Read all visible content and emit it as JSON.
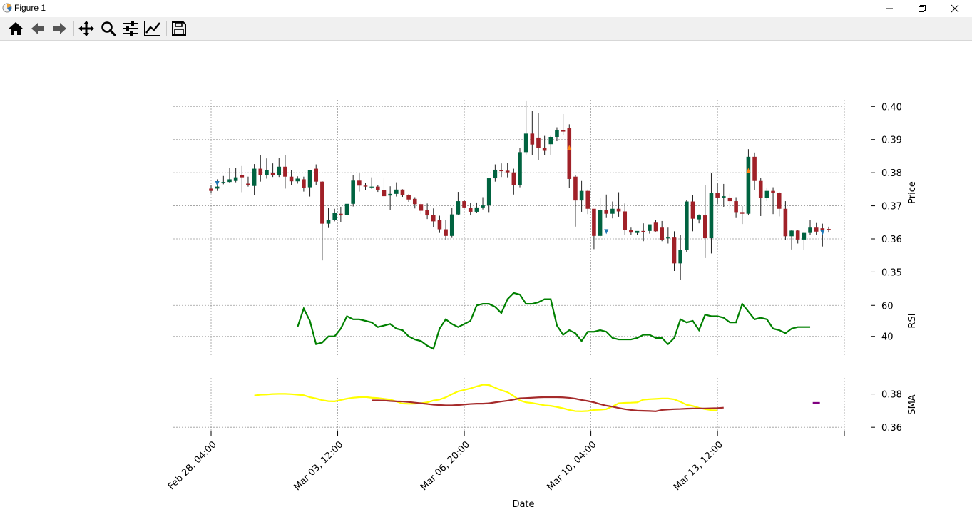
{
  "window": {
    "title": "Figure 1",
    "app_icon": "matplotlib-icon",
    "controls": [
      "minimize-icon",
      "restore-icon",
      "close-icon"
    ]
  },
  "toolbar": {
    "buttons": [
      {
        "name": "home-button",
        "icon": "home-icon"
      },
      {
        "name": "back-button",
        "icon": "arrow-left-icon"
      },
      {
        "name": "forward-button",
        "icon": "arrow-right-icon"
      },
      {
        "name": "pan-button",
        "icon": "move-icon"
      },
      {
        "name": "zoom-button",
        "icon": "magnifier-icon"
      },
      {
        "name": "subplots-button",
        "icon": "sliders-icon"
      },
      {
        "name": "edit-axes-button",
        "icon": "line-chart-icon"
      },
      {
        "name": "save-button",
        "icon": "floppy-disk-icon"
      }
    ]
  },
  "chart_data": {
    "type": "candlestick",
    "xlabel": "Date",
    "x_tick_labels": [
      "Feb 28, 04:00",
      "Mar 03, 12:00",
      "Mar 06, 20:00",
      "Mar 10, 04:00",
      "Mar 13, 12:00"
    ],
    "grid": true,
    "colors": {
      "up": "#006340",
      "down": "#a02128",
      "wick": "#222222",
      "rsi": "#008000",
      "sma_fast": "#ffff00",
      "sma_slow": "#a52a2a",
      "sma_marker": "#800080",
      "buy_marker": "#1f77b4",
      "sell_marker": "#ff7f0e"
    },
    "price_panel": {
      "ylabel": "Price",
      "yticks": [
        0.35,
        0.36,
        0.37,
        0.38,
        0.39,
        0.4
      ],
      "ytick_labels": [
        "0.35",
        "0.36",
        "0.37",
        "0.38",
        "0.39",
        "0.40"
      ],
      "ylim": [
        0.346,
        0.402
      ],
      "candles": [
        [
          0.3752,
          0.3762,
          0.3745,
          0.3737
        ],
        [
          0.3752,
          0.378,
          0.3758,
          0.3745
        ],
        [
          0.3768,
          0.379,
          0.3772,
          0.3765
        ],
        [
          0.3772,
          0.3815,
          0.378,
          0.377
        ],
        [
          0.3775,
          0.3815,
          0.3786,
          0.3771
        ],
        [
          0.3792,
          0.382,
          0.3786,
          0.3741
        ],
        [
          0.3767,
          0.3788,
          0.3762,
          0.3758
        ],
        [
          0.376,
          0.3826,
          0.3812,
          0.3732
        ],
        [
          0.3812,
          0.3852,
          0.3792,
          0.3773
        ],
        [
          0.3792,
          0.3843,
          0.3808,
          0.3782
        ],
        [
          0.38,
          0.3828,
          0.3792,
          0.3787
        ],
        [
          0.3792,
          0.3845,
          0.3818,
          0.3787
        ],
        [
          0.3818,
          0.3853,
          0.3788,
          0.3752
        ],
        [
          0.3788,
          0.3807,
          0.3774,
          0.3762
        ],
        [
          0.3774,
          0.3789,
          0.3782,
          0.3767
        ],
        [
          0.378,
          0.3788,
          0.3753,
          0.3743
        ],
        [
          0.3756,
          0.3803,
          0.3808,
          0.3728
        ],
        [
          0.3812,
          0.3825,
          0.3773,
          0.3762
        ],
        [
          0.3773,
          0.3774,
          0.3646,
          0.3535
        ],
        [
          0.3646,
          0.3693,
          0.3656,
          0.3633
        ],
        [
          0.3656,
          0.3691,
          0.3678,
          0.3653
        ],
        [
          0.3676,
          0.3697,
          0.3671,
          0.3651
        ],
        [
          0.3672,
          0.3706,
          0.3706,
          0.3663
        ],
        [
          0.3706,
          0.3792,
          0.3776,
          0.3698
        ],
        [
          0.3776,
          0.3798,
          0.3761,
          0.3743
        ],
        [
          0.3761,
          0.3768,
          0.3758,
          0.3747
        ],
        [
          0.3757,
          0.3786,
          0.3758,
          0.3751
        ],
        [
          0.3758,
          0.3762,
          0.3748,
          0.3742
        ],
        [
          0.3748,
          0.3785,
          0.3729,
          0.3723
        ],
        [
          0.3731,
          0.3759,
          0.3736,
          0.3687
        ],
        [
          0.3736,
          0.3771,
          0.3749,
          0.3728
        ],
        [
          0.3749,
          0.375,
          0.3732,
          0.3727
        ],
        [
          0.3732,
          0.3735,
          0.3719,
          0.3712
        ],
        [
          0.3721,
          0.3726,
          0.3705,
          0.3692
        ],
        [
          0.3705,
          0.3711,
          0.3685,
          0.3675
        ],
        [
          0.3688,
          0.3707,
          0.3671,
          0.366
        ],
        [
          0.3673,
          0.3692,
          0.3653,
          0.3635
        ],
        [
          0.3656,
          0.367,
          0.3629,
          0.3618
        ],
        [
          0.3629,
          0.3657,
          0.3609,
          0.3596
        ],
        [
          0.3609,
          0.3693,
          0.3674,
          0.3603
        ],
        [
          0.3674,
          0.3742,
          0.3714,
          0.3672
        ],
        [
          0.3714,
          0.3717,
          0.3695,
          0.3693
        ],
        [
          0.3694,
          0.3708,
          0.3682,
          0.3671
        ],
        [
          0.3682,
          0.371,
          0.3695,
          0.3678
        ],
        [
          0.3695,
          0.3726,
          0.3701,
          0.3689
        ],
        [
          0.3701,
          0.3778,
          0.3783,
          0.3681
        ],
        [
          0.3783,
          0.3825,
          0.3809,
          0.3773
        ],
        [
          0.3807,
          0.3828,
          0.3806,
          0.3787
        ],
        [
          0.3806,
          0.3829,
          0.3801,
          0.3786
        ],
        [
          0.3801,
          0.3812,
          0.3763,
          0.3734
        ],
        [
          0.3763,
          0.3874,
          0.3862,
          0.3756
        ],
        [
          0.3862,
          0.4018,
          0.3918,
          0.3855
        ],
        [
          0.3918,
          0.3986,
          0.3885,
          0.3853
        ],
        [
          0.3906,
          0.3979,
          0.3875,
          0.3838
        ],
        [
          0.3875,
          0.3911,
          0.3866,
          0.3852
        ],
        [
          0.3886,
          0.3911,
          0.3908,
          0.3854
        ],
        [
          0.3908,
          0.3937,
          0.3929,
          0.3895
        ],
        [
          0.3929,
          0.3977,
          0.3924,
          0.3913
        ],
        [
          0.3934,
          0.3946,
          0.3781,
          0.3753
        ],
        [
          0.3788,
          0.3792,
          0.3716,
          0.3637
        ],
        [
          0.3716,
          0.3775,
          0.3745,
          0.3682
        ],
        [
          0.3745,
          0.3749,
          0.3691,
          0.3675
        ],
        [
          0.3691,
          0.3689,
          0.3609,
          0.3569
        ],
        [
          0.3609,
          0.3724,
          0.3688,
          0.3603
        ],
        [
          0.3688,
          0.3734,
          0.3676,
          0.3663
        ],
        [
          0.3676,
          0.3713,
          0.3691,
          0.3662
        ],
        [
          0.3691,
          0.3741,
          0.3683,
          0.3667
        ],
        [
          0.3683,
          0.3707,
          0.3627,
          0.3611
        ],
        [
          0.3627,
          0.3634,
          0.3619,
          0.3612
        ],
        [
          0.3618,
          0.3623,
          0.3624,
          0.3613
        ],
        [
          0.3624,
          0.3647,
          0.3622,
          0.3593
        ],
        [
          0.3624,
          0.3638,
          0.3644,
          0.3616
        ],
        [
          0.3649,
          0.3656,
          0.3623,
          0.3622
        ],
        [
          0.3634,
          0.3654,
          0.3596,
          0.3593
        ],
        [
          0.3602,
          0.3634,
          0.3604,
          0.3586
        ],
        [
          0.3604,
          0.3623,
          0.3526,
          0.3503
        ],
        [
          0.3526,
          0.3612,
          0.3566,
          0.3477
        ],
        [
          0.3566,
          0.3717,
          0.3713,
          0.3561
        ],
        [
          0.3713,
          0.3733,
          0.3661,
          0.3623
        ],
        [
          0.3659,
          0.3674,
          0.3671,
          0.3647
        ],
        [
          0.3671,
          0.3762,
          0.3602,
          0.3542
        ],
        [
          0.3602,
          0.3798,
          0.3739,
          0.3556
        ],
        [
          0.3739,
          0.3768,
          0.3725,
          0.3705
        ],
        [
          0.3725,
          0.3766,
          0.3729,
          0.3697
        ],
        [
          0.3725,
          0.3737,
          0.3714,
          0.3691
        ],
        [
          0.3714,
          0.3726,
          0.3681,
          0.3663
        ],
        [
          0.3681,
          0.3699,
          0.3676,
          0.3645
        ],
        [
          0.3676,
          0.3871,
          0.3848,
          0.3671
        ],
        [
          0.3848,
          0.3861,
          0.3775,
          0.3747
        ],
        [
          0.3775,
          0.3785,
          0.3724,
          0.3669
        ],
        [
          0.3724,
          0.3753,
          0.3745,
          0.3714
        ],
        [
          0.3745,
          0.3756,
          0.3738,
          0.3675
        ],
        [
          0.3738,
          0.3741,
          0.3691,
          0.3668
        ],
        [
          0.3691,
          0.3714,
          0.3608,
          0.3597
        ],
        [
          0.3608,
          0.3627,
          0.3625,
          0.3568
        ],
        [
          0.3625,
          0.3628,
          0.3598,
          0.3586
        ],
        [
          0.3598,
          0.3619,
          0.3618,
          0.3567
        ],
        [
          0.3618,
          0.3656,
          0.3634,
          0.3611
        ],
        [
          0.3634,
          0.3648,
          0.3622,
          0.3613
        ],
        [
          0.3632,
          0.3646,
          0.3628,
          0.3577
        ],
        [
          0.363,
          0.3637,
          0.3627,
          0.3619
        ]
      ],
      "buy_markers": [
        {
          "i": 1,
          "y": 0.3768
        },
        {
          "i": 64,
          "y": 0.3623
        },
        {
          "i": 99,
          "y": 0.362
        }
      ],
      "sell_markers": [
        {
          "i": 58,
          "y": 0.3875
        },
        {
          "i": 87,
          "y": 0.3806
        }
      ]
    },
    "rsi_panel": {
      "ylabel": "RSI",
      "yticks": [
        40,
        60
      ],
      "ytick_labels": [
        "40",
        "60"
      ],
      "ylim": [
        27,
        73
      ],
      "start_index": 14,
      "values": [
        46,
        58,
        50,
        35,
        36,
        40,
        40,
        45,
        53,
        51,
        51,
        50,
        49,
        46,
        47,
        48,
        45,
        44,
        40,
        38,
        37,
        34,
        32,
        45,
        51,
        48,
        46,
        48,
        50,
        60,
        61,
        61,
        59,
        55,
        64,
        68,
        67,
        61,
        61,
        62,
        64,
        64,
        47,
        41,
        44,
        42,
        37,
        43,
        43,
        44,
        43,
        39,
        38,
        38,
        38,
        39,
        41,
        41,
        39,
        39,
        35,
        39,
        51,
        49,
        50,
        44,
        54,
        53,
        53,
        52,
        49,
        49,
        61,
        56,
        51,
        52,
        51,
        45,
        44,
        42,
        45,
        46,
        46,
        46
      ]
    },
    "sma_panel": {
      "ylabel": "SMA",
      "yticks": [
        0.36,
        0.38
      ],
      "ytick_labels": [
        "0.36",
        "0.38"
      ],
      "ylim": [
        0.3575,
        0.3897
      ],
      "sma_fast_start_index": 7,
      "sma_fast": [
        0.3791,
        0.3796,
        0.3797,
        0.38,
        0.3801,
        0.3801,
        0.3799,
        0.3796,
        0.3793,
        0.3781,
        0.3773,
        0.3763,
        0.3757,
        0.3756,
        0.3764,
        0.3772,
        0.3778,
        0.3781,
        0.3782,
        0.3778,
        0.3776,
        0.3771,
        0.3767,
        0.3755,
        0.3743,
        0.3741,
        0.3742,
        0.3745,
        0.375,
        0.3761,
        0.3767,
        0.378,
        0.3799,
        0.3816,
        0.3825,
        0.3834,
        0.3846,
        0.3856,
        0.3854,
        0.3838,
        0.3823,
        0.3811,
        0.3788,
        0.3762,
        0.375,
        0.3746,
        0.3739,
        0.3732,
        0.3729,
        0.3722,
        0.3714,
        0.3704,
        0.3697,
        0.3696,
        0.3698,
        0.3704,
        0.3706,
        0.3709,
        0.3725,
        0.3744,
        0.3747,
        0.3748,
        0.375,
        0.3766,
        0.3769,
        0.3771,
        0.3773,
        0.3773,
        0.3768,
        0.3753,
        0.3735,
        0.3728,
        0.3717,
        0.3709,
        0.3703,
        0.3701
      ],
      "sma_slow_start_index": 26,
      "sma_slow": [
        0.3762,
        0.3762,
        0.3761,
        0.3758,
        0.3756,
        0.3755,
        0.3752,
        0.3748,
        0.3744,
        0.374,
        0.3736,
        0.3734,
        0.3732,
        0.3732,
        0.3734,
        0.3737,
        0.374,
        0.3742,
        0.3742,
        0.3744,
        0.375,
        0.3755,
        0.376,
        0.3767,
        0.3774,
        0.3776,
        0.3778,
        0.378,
        0.3781,
        0.3781,
        0.3781,
        0.378,
        0.3777,
        0.3772,
        0.3764,
        0.3758,
        0.375,
        0.3739,
        0.373,
        0.3724,
        0.3716,
        0.3709,
        0.3704,
        0.37,
        0.3699,
        0.3698,
        0.3696,
        0.3704,
        0.3707,
        0.3709,
        0.371,
        0.3712,
        0.3713,
        0.3713,
        0.3713,
        0.3714,
        0.3715,
        0.3718
      ],
      "marker": {
        "i": 98,
        "y": 0.3747
      }
    }
  }
}
